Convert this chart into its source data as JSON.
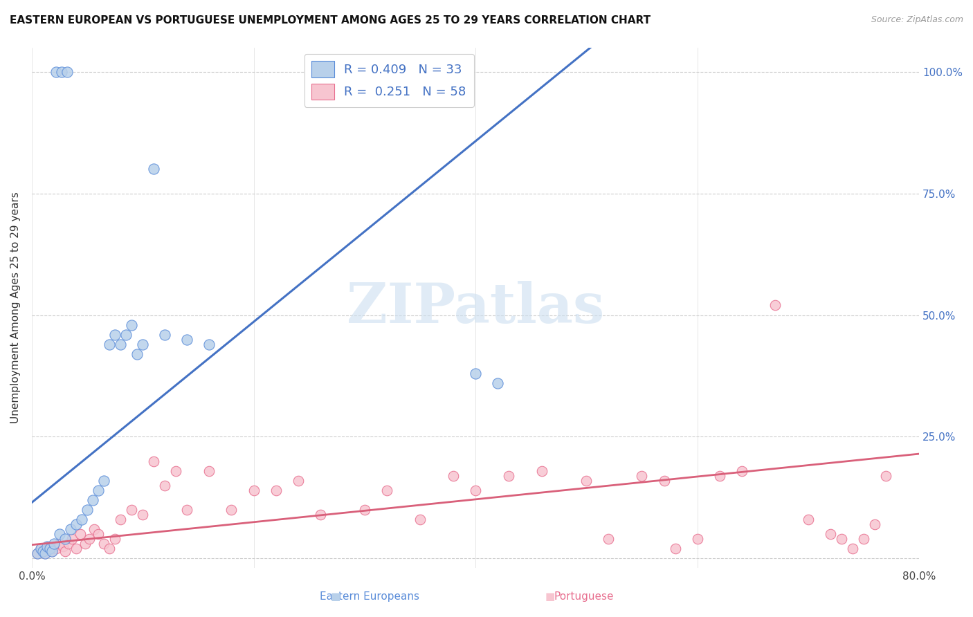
{
  "title": "EASTERN EUROPEAN VS PORTUGUESE UNEMPLOYMENT AMONG AGES 25 TO 29 YEARS CORRELATION CHART",
  "source": "Source: ZipAtlas.com",
  "ylabel": "Unemployment Among Ages 25 to 29 years",
  "xlim": [
    0.0,
    0.8
  ],
  "ylim": [
    -0.02,
    1.05
  ],
  "xticks": [
    0.0,
    0.2,
    0.4,
    0.6,
    0.8
  ],
  "xticklabels": [
    "0.0%",
    "",
    "",
    "",
    "80.0%"
  ],
  "yticks": [
    0.0,
    0.25,
    0.5,
    0.75,
    1.0
  ],
  "right_yticklabels": [
    "",
    "25.0%",
    "50.0%",
    "75.0%",
    "100.0%"
  ],
  "blue_R": 0.409,
  "blue_N": 33,
  "pink_R": 0.251,
  "pink_N": 58,
  "blue_fill_color": "#b8d0ea",
  "blue_edge_color": "#5b8dd9",
  "pink_fill_color": "#f7c5d0",
  "pink_edge_color": "#e87090",
  "blue_line_color": "#4472c4",
  "pink_line_color": "#d9607a",
  "watermark_text": "ZIPatlas",
  "blue_line_x": [
    0.0,
    0.52
  ],
  "blue_line_y": [
    0.115,
    1.08
  ],
  "pink_line_x": [
    0.0,
    0.8
  ],
  "pink_line_y": [
    0.028,
    0.215
  ],
  "blue_scatter_x": [
    0.022,
    0.027,
    0.032,
    0.005,
    0.008,
    0.01,
    0.012,
    0.014,
    0.016,
    0.018,
    0.02,
    0.025,
    0.03,
    0.035,
    0.04,
    0.045,
    0.05,
    0.055,
    0.06,
    0.065,
    0.07,
    0.075,
    0.08,
    0.085,
    0.09,
    0.095,
    0.1,
    0.11,
    0.12,
    0.14,
    0.16,
    0.4,
    0.42
  ],
  "blue_scatter_y": [
    1.0,
    1.0,
    1.0,
    0.01,
    0.02,
    0.015,
    0.01,
    0.025,
    0.02,
    0.015,
    0.03,
    0.05,
    0.04,
    0.06,
    0.07,
    0.08,
    0.1,
    0.12,
    0.14,
    0.16,
    0.44,
    0.46,
    0.44,
    0.46,
    0.48,
    0.42,
    0.44,
    0.8,
    0.46,
    0.45,
    0.44,
    0.38,
    0.36
  ],
  "pink_scatter_x": [
    0.005,
    0.008,
    0.01,
    0.012,
    0.015,
    0.018,
    0.02,
    0.022,
    0.025,
    0.028,
    0.03,
    0.033,
    0.036,
    0.04,
    0.044,
    0.048,
    0.052,
    0.056,
    0.06,
    0.065,
    0.07,
    0.075,
    0.08,
    0.09,
    0.1,
    0.11,
    0.12,
    0.13,
    0.14,
    0.16,
    0.18,
    0.2,
    0.22,
    0.24,
    0.26,
    0.3,
    0.32,
    0.35,
    0.38,
    0.4,
    0.43,
    0.46,
    0.5,
    0.52,
    0.55,
    0.57,
    0.58,
    0.6,
    0.62,
    0.64,
    0.67,
    0.7,
    0.72,
    0.73,
    0.74,
    0.75,
    0.76,
    0.77
  ],
  "pink_scatter_y": [
    0.01,
    0.02,
    0.015,
    0.01,
    0.02,
    0.015,
    0.025,
    0.02,
    0.03,
    0.025,
    0.015,
    0.03,
    0.04,
    0.02,
    0.05,
    0.03,
    0.04,
    0.06,
    0.05,
    0.03,
    0.02,
    0.04,
    0.08,
    0.1,
    0.09,
    0.2,
    0.15,
    0.18,
    0.1,
    0.18,
    0.1,
    0.14,
    0.14,
    0.16,
    0.09,
    0.1,
    0.14,
    0.08,
    0.17,
    0.14,
    0.17,
    0.18,
    0.16,
    0.04,
    0.17,
    0.16,
    0.02,
    0.04,
    0.17,
    0.18,
    0.52,
    0.08,
    0.05,
    0.04,
    0.02,
    0.04,
    0.07,
    0.17
  ]
}
